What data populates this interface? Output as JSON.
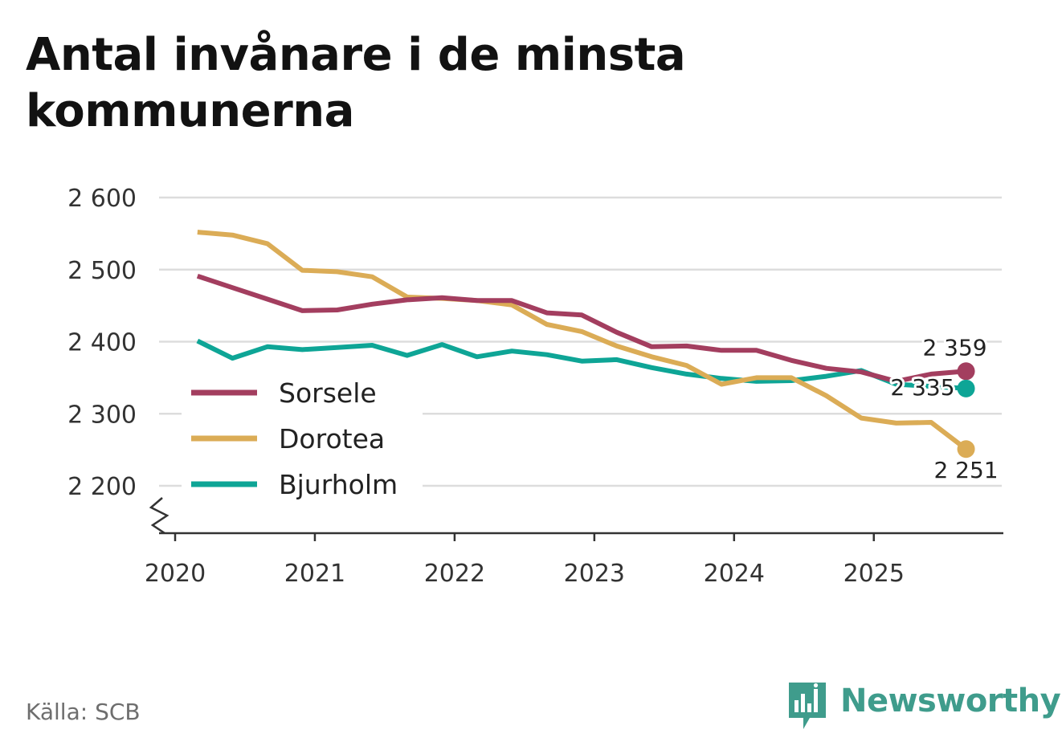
{
  "title": "Antal invånare i de minsta kommunerna",
  "source": "Källa: SCB",
  "brand": "Newsworthy",
  "colors": {
    "brand": "#3f9c8c",
    "grid": "#dddddd",
    "axis": "#333333"
  },
  "chart_data": {
    "type": "line",
    "title": "Antal invånare i de minsta kommunerna",
    "xlabel": "",
    "ylabel": "",
    "x_range": [
      2020.0,
      2025.95
    ],
    "ylim": [
      2200,
      2600
    ],
    "y_ticks": [
      2600,
      2500,
      2400,
      2300,
      2200
    ],
    "y_tick_labels": [
      "2 600",
      "2 500",
      "2 400",
      "2 300",
      "2 200"
    ],
    "x_ticks": [
      2020,
      2021,
      2022,
      2023,
      2024,
      2025
    ],
    "x_tick_labels": [
      "2020",
      "2021",
      "2022",
      "2023",
      "2024",
      "2025"
    ],
    "grid": true,
    "axis_break": true,
    "legend_position": "middle-left",
    "x": [
      2020.16,
      2020.41,
      2020.66,
      2020.91,
      2021.16,
      2021.41,
      2021.66,
      2021.91,
      2022.16,
      2022.41,
      2022.66,
      2022.91,
      2023.16,
      2023.41,
      2023.66,
      2023.91,
      2024.16,
      2024.41,
      2024.66,
      2024.91,
      2025.16,
      2025.41,
      2025.66
    ],
    "series": [
      {
        "name": "Sorsele",
        "color": "#a33e5f",
        "values": [
          2491,
          2475,
          2459,
          2443,
          2444,
          2452,
          2458,
          2461,
          2457,
          2457,
          2440,
          2437,
          2413,
          2393,
          2394,
          2388,
          2388,
          2374,
          2363,
          2358,
          2345,
          2355,
          2359
        ],
        "end_label": "2 359"
      },
      {
        "name": "Dorotea",
        "color": "#dbac56",
        "values": [
          2552,
          2548,
          2536,
          2499,
          2497,
          2490,
          2462,
          2460,
          2457,
          2451,
          2424,
          2414,
          2394,
          2379,
          2367,
          2341,
          2350,
          2350,
          2325,
          2294,
          2287,
          2288,
          2251
        ],
        "end_label": "2 251"
      },
      {
        "name": "Bjurholm",
        "color": "#0ea596",
        "values": [
          2401,
          2377,
          2393,
          2389,
          2392,
          2395,
          2381,
          2396,
          2379,
          2387,
          2382,
          2373,
          2375,
          2364,
          2355,
          2349,
          2345,
          2346,
          2352,
          2360,
          2341,
          2338,
          2335
        ],
        "end_label": "2 335"
      }
    ]
  }
}
